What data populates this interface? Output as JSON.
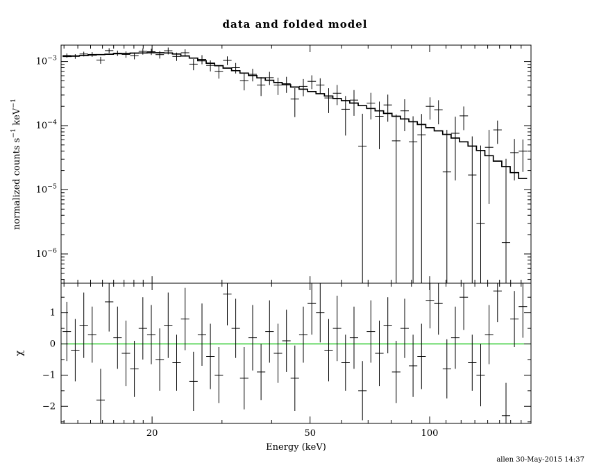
{
  "footer": {
    "timestamp": "allen 30-May-2015 14:37"
  },
  "chart_data": {
    "type": "line",
    "title": "data and folded model",
    "xlabel": "Energy (keV)",
    "xscale": "log",
    "xlim": [
      11.8,
      180
    ],
    "x_major_ticks": [
      20,
      50,
      100
    ],
    "x_major_tick_labels": [
      "20",
      "50",
      "100"
    ],
    "x_minor_ticks": [
      12,
      13,
      14,
      15,
      16,
      17,
      18,
      19,
      30,
      40,
      60,
      70,
      80,
      90,
      110,
      120,
      130,
      140,
      150,
      160,
      170
    ],
    "top_panel": {
      "ylabel": "normalized counts s^−1 keV^−1",
      "yscale": "log",
      "ylim": [
        3.5e-07,
        0.0018
      ],
      "y_major_ticks": [
        0.001,
        0.0001,
        1e-05,
        1e-06
      ],
      "y_major_tick_labels": [
        "10^−3",
        "10^−4",
        "10^−5",
        "10^−6"
      ],
      "energy": [
        12.2,
        12.81,
        13.46,
        14.13,
        14.84,
        15.59,
        16.37,
        17.19,
        18.05,
        18.96,
        19.91,
        20.91,
        21.96,
        23.06,
        24.22,
        25.43,
        26.71,
        28.05,
        29.46,
        30.94,
        32.49,
        34.12,
        35.83,
        37.63,
        39.52,
        41.5,
        43.59,
        45.77,
        48.07,
        50.49,
        53.02,
        55.68,
        58.48,
        61.41,
        64.49,
        67.73,
        71.13,
        74.7,
        78.45,
        82.38,
        86.52,
        90.86,
        95.42,
        100.21,
        105.24,
        110.52,
        116.07,
        121.89,
        128.01,
        134.43,
        141.18,
        148.26,
        155.7,
        163.52,
        171.72
      ],
      "model": [
        0.0012,
        0.00122,
        0.00124,
        0.00126,
        0.00128,
        0.0013,
        0.00132,
        0.00133,
        0.00135,
        0.00136,
        0.00137,
        0.00137,
        0.00136,
        0.00131,
        0.00122,
        0.00113,
        0.00103,
        0.00094,
        0.00086,
        0.00079,
        0.00072,
        0.00066,
        0.000605,
        0.000555,
        0.00051,
        0.00047,
        0.000435,
        0.0004,
        0.00037,
        0.00034,
        0.000315,
        0.00029,
        0.000265,
        0.000245,
        0.000225,
        0.000205,
        0.000185,
        0.00017,
        0.000155,
        0.00014,
        0.000127,
        0.000115,
        0.000104,
        9.3e-05,
        8.3e-05,
        7.3e-05,
        6.4e-05,
        5.6e-05,
        4.8e-05,
        4.1e-05,
        3.4e-05,
        2.8e-05,
        2.3e-05,
        1.85e-05,
        1.5e-05
      ],
      "data": [
        0.00124,
        0.0012,
        0.00131,
        0.00129,
        0.00105,
        0.00148,
        0.00135,
        0.00129,
        0.00123,
        0.00144,
        0.00142,
        0.00128,
        0.00147,
        0.0012,
        0.00137,
        0.00091,
        0.00108,
        0.00087,
        0.0007,
        0.00104,
        0.0008,
        0.0005,
        0.00063,
        0.00043,
        0.00056,
        0.00043,
        0.00045,
        0.00026,
        0.00041,
        0.00049,
        0.00043,
        0.00027,
        0.00032,
        0.00018,
        0.00025,
        4.8e-05,
        0.000225,
        0.00014,
        0.00021,
        5.8e-05,
        0.00017,
        5.6e-05,
        7.2e-05,
        0.0002,
        0.000177,
        1.9e-05,
        7.6e-05,
        0.000142,
        1.7e-05,
        3e-06,
        4.6e-05,
        8.6e-05,
        1.5e-06,
        3.8e-05,
        4e-05
      ],
      "data_err": [
        9.6e-05,
        9.8e-05,
        0.00011,
        0.00011,
        0.00013,
        0.00013,
        0.00013,
        0.00015,
        0.00015,
        0.00016,
        0.00016,
        0.00017,
        0.00018,
        0.00018,
        0.00018,
        0.00018,
        0.000175,
        0.00017,
        0.00016,
        0.00016,
        0.00015,
        0.000145,
        0.00014,
        0.00014,
        0.00013,
        0.00013,
        0.000126,
        0.000124,
        0.000122,
        0.000119,
        0.000117,
        0.000113,
        0.000111,
        0.00011,
        0.000108,
        0.000105,
        0.0001,
        9.7e-05,
        9.5e-05,
        9.1e-05,
        8.8e-05,
        8.4e-05,
        8e-05,
        7.6e-05,
        7.2e-05,
        6.7e-05,
        6.2e-05,
        5.7e-05,
        5.1e-05,
        4.6e-05,
        4e-05,
        3.4e-05,
        2.9e-05,
        2.4e-05,
        2.1e-05
      ]
    },
    "bottom_panel": {
      "ylabel": "χ",
      "yscale": "linear",
      "ylim": [
        -2.55,
        1.95
      ],
      "y_major_ticks": [
        -2,
        -1,
        0,
        1
      ],
      "y_major_tick_labels": [
        "−2",
        "−1",
        "0",
        "1"
      ],
      "y_minor_ticks": [
        -2.5,
        -1.5,
        -0.5,
        0.5,
        1.5
      ],
      "zero_line_color": "#00c000",
      "chi": [
        0.4,
        -0.2,
        0.6,
        0.3,
        -1.8,
        1.35,
        0.2,
        -0.3,
        -0.8,
        0.5,
        0.3,
        -0.5,
        0.6,
        -0.6,
        0.8,
        -1.2,
        0.3,
        -0.4,
        -1.0,
        1.6,
        0.5,
        -1.1,
        0.2,
        -0.9,
        0.4,
        -0.3,
        0.1,
        -1.1,
        0.3,
        1.3,
        1.0,
        -0.2,
        0.5,
        -0.6,
        0.2,
        -1.5,
        0.4,
        -0.3,
        0.6,
        -0.9,
        0.5,
        -0.7,
        -0.4,
        1.4,
        1.3,
        -0.8,
        0.2,
        1.5,
        -0.6,
        -1.0,
        0.3,
        1.7,
        -2.3,
        0.8,
        1.2
      ],
      "chi_err": [
        0.95,
        1.0,
        1.05,
        0.9,
        1.0,
        0.95,
        1.0,
        1.05,
        0.9,
        1.0,
        0.95,
        1.0,
        1.05,
        0.9,
        1.0,
        0.95,
        1.0,
        1.05,
        0.9,
        1.0,
        0.95,
        1.0,
        1.05,
        0.9,
        1.0,
        0.95,
        1.0,
        1.05,
        0.9,
        1.0,
        0.95,
        1.0,
        1.05,
        0.9,
        1.0,
        0.95,
        1.0,
        1.05,
        0.9,
        1.0,
        0.95,
        1.0,
        1.05,
        0.9,
        1.0,
        0.95,
        1.0,
        1.05,
        0.9,
        1.0,
        0.95,
        1.0,
        1.05,
        0.9,
        1.0
      ]
    }
  }
}
